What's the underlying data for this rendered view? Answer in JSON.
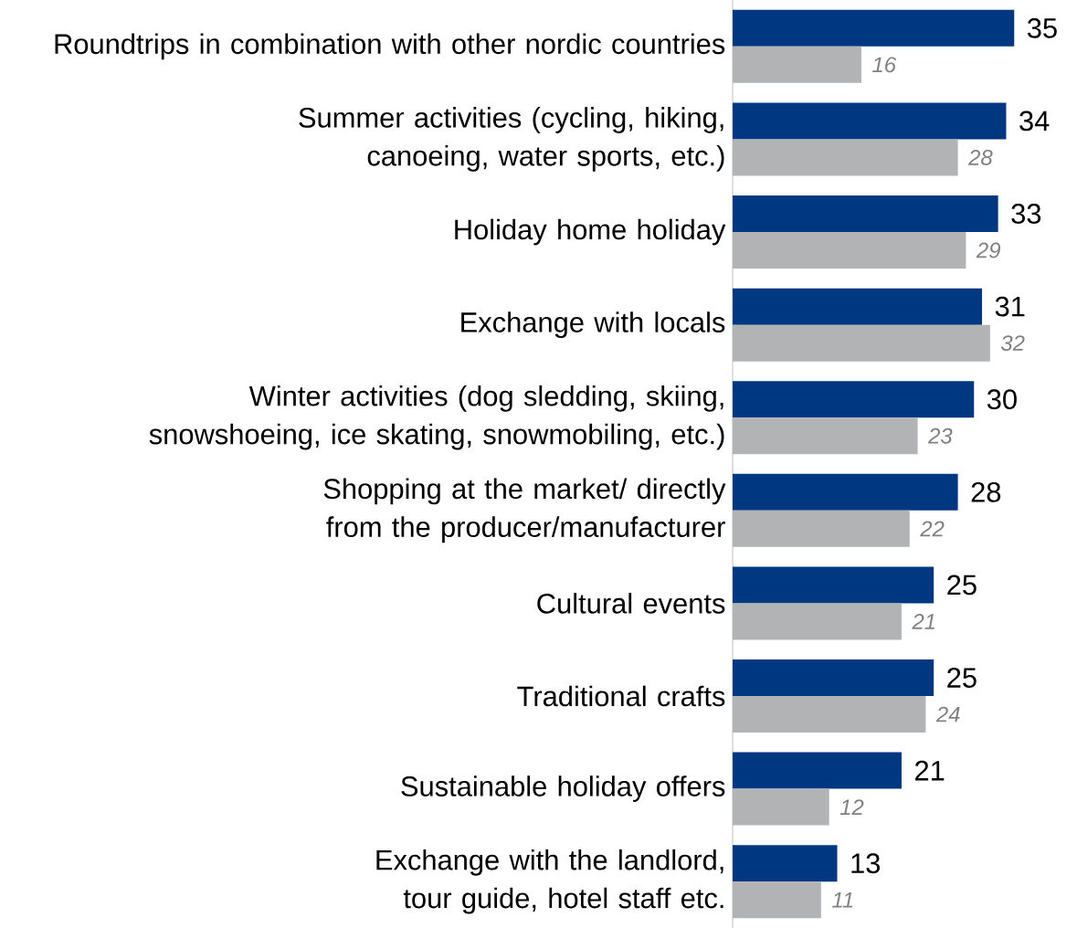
{
  "chart_data": {
    "type": "bar",
    "orientation": "horizontal",
    "data_labels": true,
    "categories": [
      "Roundtrips in combination with other nordic countries",
      "Summer activities (cycling, hiking, canoeing, water sports, etc.)",
      "Holiday home holiday",
      "Exchange with locals",
      "Winter activities (dog sledding, skiing, snowshoeing, ice skating, snowmobiling, etc.)",
      "Shopping at the market/ directly from the producer/manufacturer",
      "Cultural events",
      "Traditional crafts",
      "Sustainable holiday offers",
      "Exchange with the landlord, tour guide, hotel staff etc."
    ],
    "series": [
      {
        "color": "#003781",
        "values": [
          35,
          34,
          33,
          31,
          30,
          28,
          25,
          25,
          21,
          13
        ]
      },
      {
        "color": "#b2b3b5",
        "values": [
          16,
          28,
          29,
          32,
          23,
          22,
          21,
          24,
          12,
          11
        ]
      }
    ]
  }
}
